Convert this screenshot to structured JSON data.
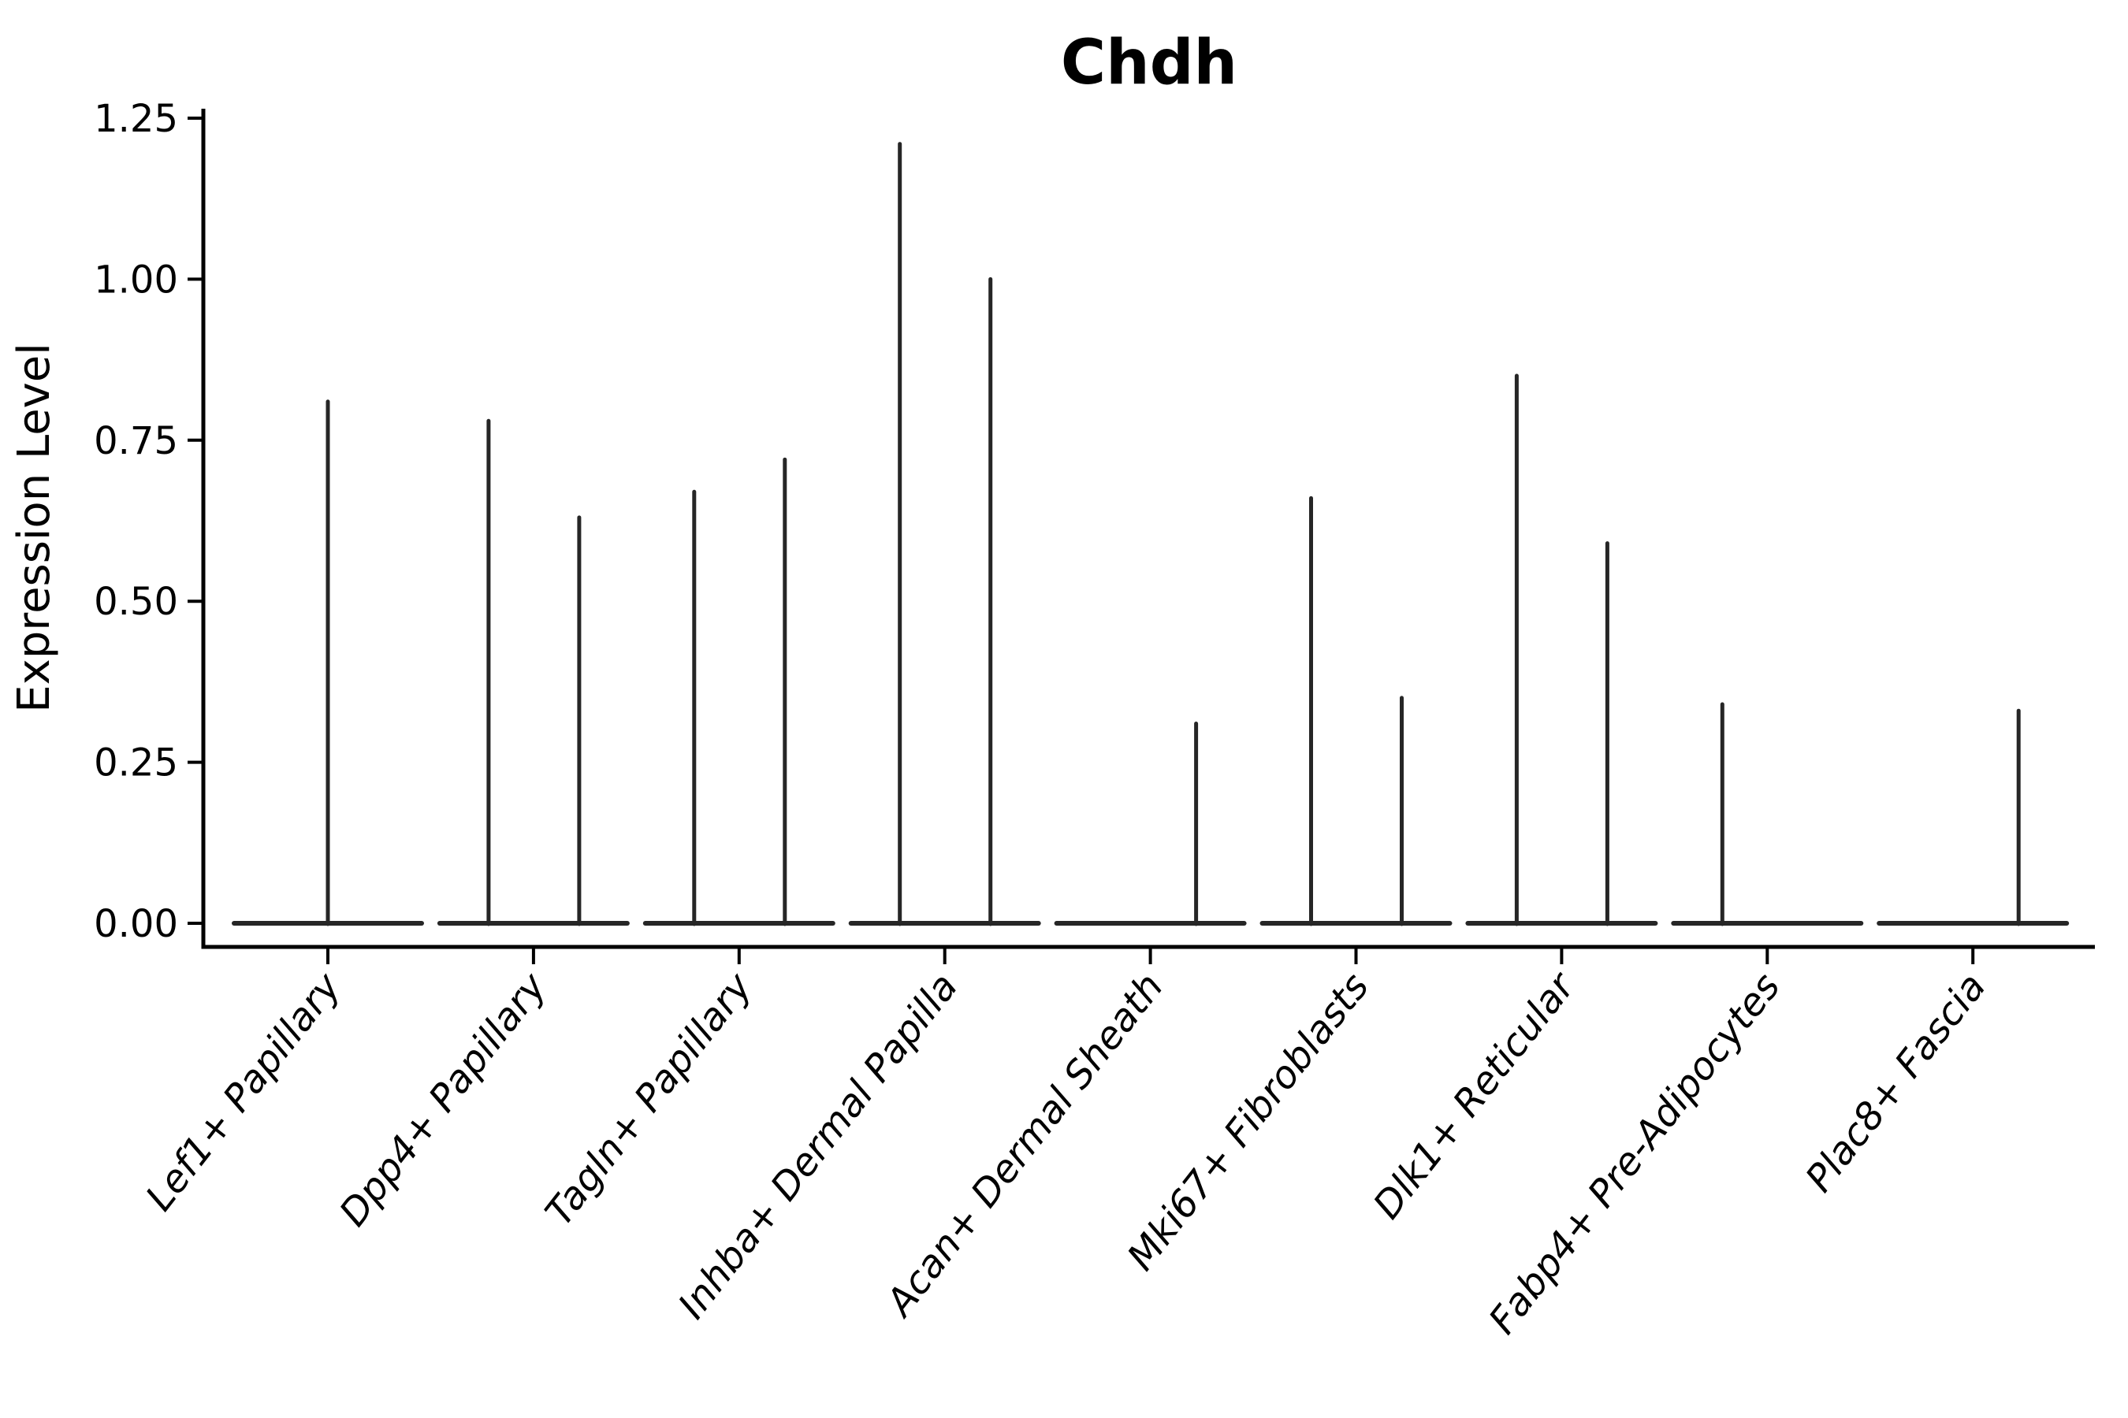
{
  "title": "Chdh",
  "colors": {
    "violin_line": "#262626",
    "axis_line": "#000000",
    "text": "#000000",
    "background": "#ffffff"
  },
  "chart_data": {
    "type": "violin",
    "title": "Chdh",
    "xlabel": "",
    "ylabel": "Expression Level",
    "grid": false,
    "legend": "none",
    "ylim": [
      -0.04,
      1.27
    ],
    "y_tick_values": [
      0.0,
      0.25,
      0.5,
      0.75,
      1.0,
      1.25
    ],
    "y_tick_labels": [
      "0.00",
      "0.25",
      "0.50",
      "0.75",
      "1.00",
      "1.25"
    ],
    "baseline_value": 0.0,
    "note": "Each category shows a collapsed violin: a flat line at expression 0 plus thin vertical spikes reaching the maximum expressed values; spikes sit left/right of the category center (split halves) or at the center.",
    "categories": [
      "Lef1+ Papillary",
      "Dpp4+ Papillary",
      "Tagln+ Papillary",
      "Inhba+ Dermal Papilla",
      "Acan+ Dermal Sheath",
      "Mki67+ Fibroblasts",
      "Dlk1+ Reticular",
      "Fabp4+ Pre-Adipocytes",
      "Plac8+ Fascia"
    ],
    "series": [
      {
        "category": "Lef1+ Papillary",
        "spikes": [
          {
            "side": "center",
            "max": 0.81
          }
        ]
      },
      {
        "category": "Dpp4+ Papillary",
        "spikes": [
          {
            "side": "left",
            "max": 0.78
          },
          {
            "side": "right",
            "max": 0.63
          }
        ]
      },
      {
        "category": "Tagln+ Papillary",
        "spikes": [
          {
            "side": "left",
            "max": 0.67
          },
          {
            "side": "right",
            "max": 0.72
          }
        ]
      },
      {
        "category": "Inhba+ Dermal Papilla",
        "spikes": [
          {
            "side": "left",
            "max": 1.21
          },
          {
            "side": "right",
            "max": 1.0
          }
        ]
      },
      {
        "category": "Acan+ Dermal Sheath",
        "spikes": [
          {
            "side": "right",
            "max": 0.31
          }
        ]
      },
      {
        "category": "Mki67+ Fibroblasts",
        "spikes": [
          {
            "side": "left",
            "max": 0.66
          },
          {
            "side": "right",
            "max": 0.35
          }
        ]
      },
      {
        "category": "Dlk1+ Reticular",
        "spikes": [
          {
            "side": "left",
            "max": 0.85
          },
          {
            "side": "right",
            "max": 0.59
          }
        ]
      },
      {
        "category": "Fabp4+ Pre-Adipocytes",
        "spikes": [
          {
            "side": "left",
            "max": 0.34
          }
        ]
      },
      {
        "category": "Plac8+ Fascia",
        "spikes": [
          {
            "side": "right",
            "max": 0.33
          }
        ]
      }
    ]
  }
}
